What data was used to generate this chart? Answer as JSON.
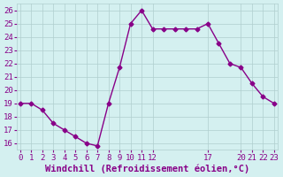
{
  "x": [
    0,
    1,
    2,
    3,
    4,
    5,
    6,
    7,
    8,
    9,
    10,
    11,
    12,
    13,
    14,
    15,
    16,
    17,
    18,
    19,
    20,
    21,
    22,
    23
  ],
  "y": [
    19.0,
    19.0,
    18.5,
    17.5,
    17.0,
    16.5,
    16.0,
    15.8,
    19.0,
    21.7,
    25.0,
    26.0,
    24.6,
    24.6,
    24.6,
    24.6,
    24.6,
    25.0,
    23.5,
    22.0,
    21.7,
    20.5,
    19.5,
    19.0
  ],
  "line_color": "#880088",
  "marker": "D",
  "marker_size": 2.5,
  "background_color": "#d4f0f0",
  "grid_color": "#b0cece",
  "xlabel": "Windchill (Refroidissement éolien,°C)",
  "xlabel_fontsize": 7.5,
  "ylim": [
    15.5,
    26.5
  ],
  "yticks": [
    16,
    17,
    18,
    19,
    20,
    21,
    22,
    23,
    24,
    25,
    26
  ],
  "tick_fontsize": 6.5,
  "line_width": 1.0,
  "xlim": [
    -0.3,
    23.3
  ]
}
